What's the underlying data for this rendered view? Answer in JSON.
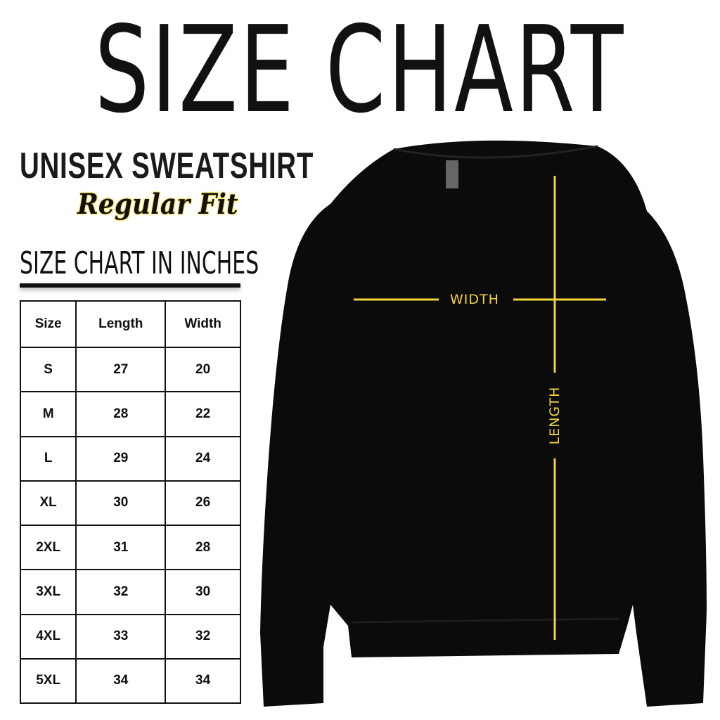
{
  "title": "SIZE CHART",
  "product": "UNISEX SWEATSHIRT",
  "fit": "Regular Fit",
  "units_heading": "SIZE CHART IN INCHES",
  "table": {
    "headers": [
      "Size",
      "Length",
      "Width"
    ],
    "rows": [
      [
        "S",
        "27",
        "20"
      ],
      [
        "M",
        "28",
        "22"
      ],
      [
        "L",
        "29",
        "24"
      ],
      [
        "XL",
        "30",
        "26"
      ],
      [
        "2XL",
        "31",
        "28"
      ],
      [
        "3XL",
        "32",
        "30"
      ],
      [
        "4XL",
        "33",
        "32"
      ],
      [
        "5XL",
        "34",
        "34"
      ]
    ]
  },
  "diagram": {
    "width_label": "WIDTH",
    "length_label": "LENGTH",
    "line_color": "#f2d43a",
    "garment_color": "#0b0b0b"
  }
}
